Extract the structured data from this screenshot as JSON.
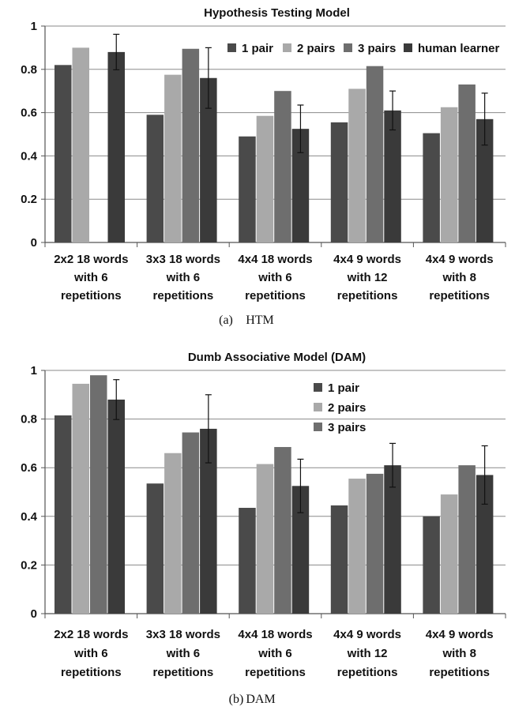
{
  "chart_data": [
    {
      "type": "bar",
      "title": "Hypothesis Testing Model",
      "caption_letter": "(a)",
      "caption_name": "HTM",
      "categories": [
        [
          "2x2 18 words",
          "with 6",
          "repetitions"
        ],
        [
          "3x3 18 words",
          "with 6",
          "repetitions"
        ],
        [
          "4x4 18 words",
          "with 6",
          "repetitions"
        ],
        [
          "4x4 9 words",
          "with 12",
          "repetitions"
        ],
        [
          "4x4 9 words",
          "with 8",
          "repetitions"
        ]
      ],
      "ylim": [
        0,
        1
      ],
      "yticks": [
        "0",
        "0.2",
        "0.4",
        "0.6",
        "0.8",
        "1"
      ],
      "grid": true,
      "legend_position": "top-right",
      "series": [
        {
          "name": "1 pair",
          "color": "#4a4a4a",
          "values": [
            0.82,
            0.59,
            0.49,
            0.555,
            0.505
          ]
        },
        {
          "name": "2 pairs",
          "color": "#a9a9a9",
          "values": [
            0.9,
            0.775,
            0.585,
            0.71,
            0.625
          ]
        },
        {
          "name": "3 pairs",
          "color": "#6e6e6e",
          "values": [
            null,
            0.895,
            0.7,
            0.815,
            0.73
          ]
        },
        {
          "name": "human learner",
          "color": "#3a3a3a",
          "values": [
            0.88,
            0.76,
            0.525,
            0.61,
            0.57
          ],
          "error": [
            0.082,
            0.14,
            0.11,
            0.09,
            0.12
          ]
        }
      ]
    },
    {
      "type": "bar",
      "title": "Dumb Associative Model (DAM)",
      "caption_letter": "(b)",
      "caption_name": "DAM",
      "categories": [
        [
          "2x2 18 words",
          "with 6",
          "repetitions"
        ],
        [
          "3x3 18 words",
          "with 6",
          "repetitions"
        ],
        [
          "4x4 18 words",
          "with 6",
          "repetitions"
        ],
        [
          "4x4 9 words",
          "with 12",
          "repetitions"
        ],
        [
          "4x4 9 words",
          "with 8",
          "repetitions"
        ]
      ],
      "ylim": [
        0,
        1
      ],
      "yticks": [
        "0",
        "0.2",
        "0.4",
        "0.6",
        "0.8",
        "1"
      ],
      "grid": true,
      "legend_position": "top-right",
      "series": [
        {
          "name": "1 pair",
          "color": "#4a4a4a",
          "values": [
            0.815,
            0.535,
            0.435,
            0.445,
            0.4
          ]
        },
        {
          "name": "2 pairs",
          "color": "#a9a9a9",
          "values": [
            0.945,
            0.66,
            0.615,
            0.555,
            0.49
          ]
        },
        {
          "name": "3 pairs",
          "color": "#6e6e6e",
          "values": [
            0.98,
            0.745,
            0.685,
            0.575,
            0.61
          ]
        },
        {
          "name": "",
          "color": "#3a3a3a",
          "values": [
            0.88,
            0.76,
            0.525,
            0.61,
            0.57
          ],
          "error": [
            0.082,
            0.14,
            0.11,
            0.09,
            0.12
          ]
        }
      ]
    }
  ]
}
